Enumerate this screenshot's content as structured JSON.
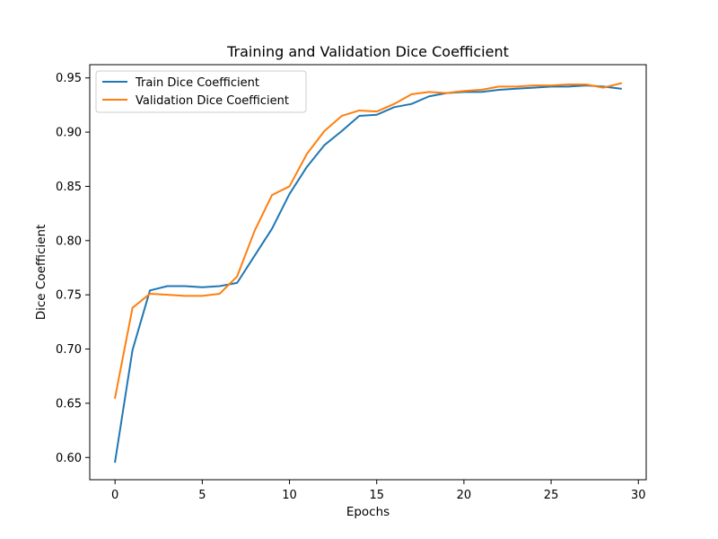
{
  "chart_data": {
    "type": "line",
    "title": "Training and Validation Dice Coefficient",
    "xlabel": "Epochs",
    "ylabel": "Dice Coefficient",
    "xlim": [
      -1.45,
      30.45
    ],
    "ylim": [
      0.5795,
      0.9622
    ],
    "x_ticks": [
      0,
      5,
      10,
      15,
      20,
      25,
      30
    ],
    "y_ticks": [
      0.6,
      0.65,
      0.7,
      0.75,
      0.8,
      0.85,
      0.9,
      0.95
    ],
    "grid": false,
    "legend_position": "upper-left",
    "x": [
      0,
      1,
      2,
      3,
      4,
      5,
      6,
      7,
      8,
      9,
      10,
      11,
      12,
      13,
      14,
      15,
      16,
      17,
      18,
      19,
      20,
      21,
      22,
      23,
      24,
      25,
      26,
      27,
      28,
      29
    ],
    "series": [
      {
        "name": "Train Dice Coefficient",
        "color": "#1f77b4",
        "values": [
          0.596,
          0.699,
          0.754,
          0.758,
          0.758,
          0.757,
          0.758,
          0.761,
          0.786,
          0.811,
          0.843,
          0.868,
          0.888,
          0.901,
          0.915,
          0.916,
          0.923,
          0.926,
          0.933,
          0.936,
          0.937,
          0.937,
          0.939,
          0.94,
          0.941,
          0.942,
          0.942,
          0.943,
          0.942,
          0.94
        ]
      },
      {
        "name": "Validation Dice Coefficient",
        "color": "#ff7f0e",
        "values": [
          0.655,
          0.738,
          0.751,
          0.75,
          0.749,
          0.749,
          0.751,
          0.767,
          0.809,
          0.842,
          0.85,
          0.88,
          0.901,
          0.915,
          0.92,
          0.919,
          0.926,
          0.935,
          0.937,
          0.936,
          0.938,
          0.939,
          0.942,
          0.942,
          0.943,
          0.943,
          0.944,
          0.944,
          0.941,
          0.945
        ]
      }
    ]
  }
}
